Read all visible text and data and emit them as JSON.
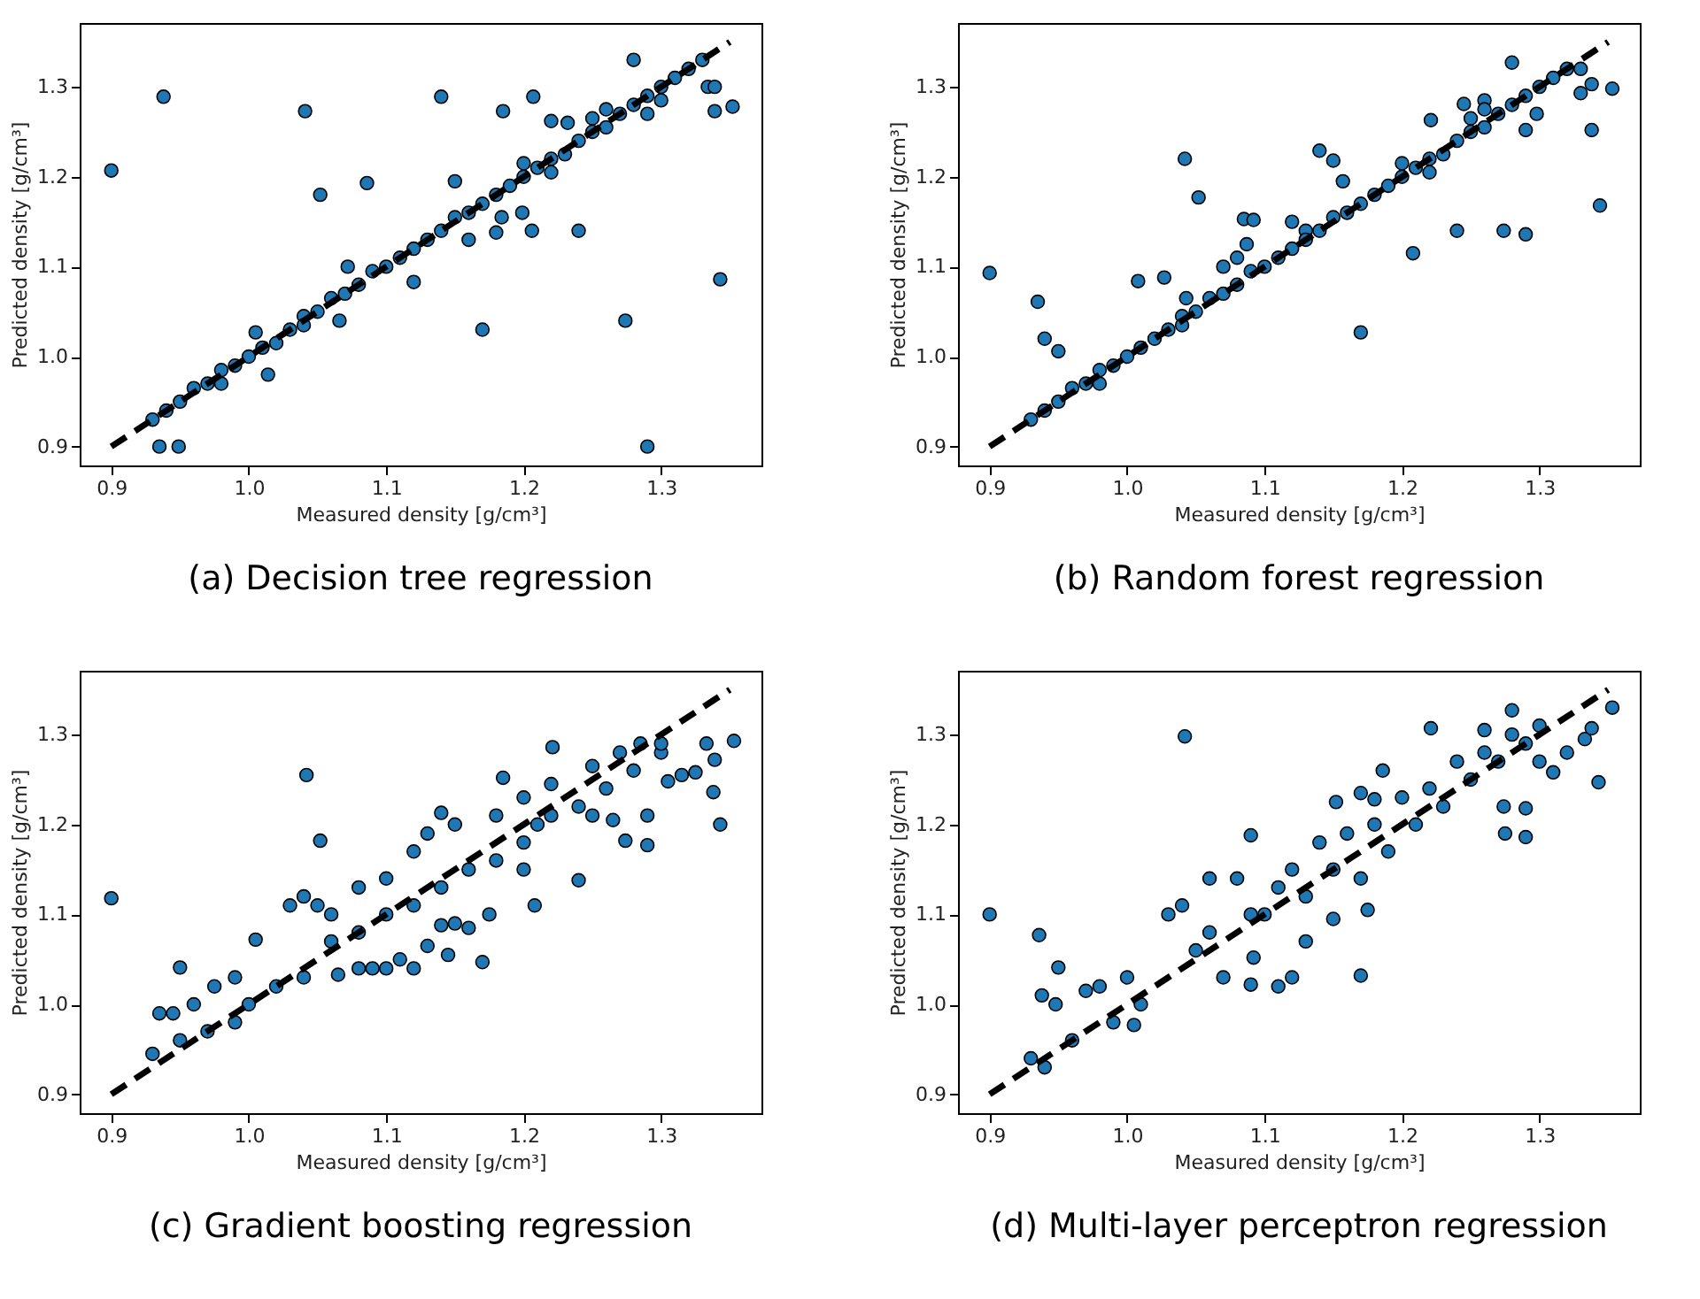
{
  "chart_data": [
    {
      "type": "scatter",
      "title": "(a) Decision tree regression",
      "xlabel": "Measured density [g/cm³]",
      "ylabel": "Predicted density [g/cm³]",
      "xlim": [
        0.877,
        1.373
      ],
      "ylim": [
        0.879,
        1.371
      ],
      "xticks": [
        {
          "value": 0.9,
          "label": "0.9"
        },
        {
          "value": 1.0,
          "label": "1.0"
        },
        {
          "value": 1.1,
          "label": "1.1"
        },
        {
          "value": 1.2,
          "label": "1.2"
        },
        {
          "value": 1.3,
          "label": "1.3"
        }
      ],
      "yticks": [
        {
          "value": 0.9,
          "label": "0.9"
        },
        {
          "value": 1.0,
          "label": "1.0"
        },
        {
          "value": 1.1,
          "label": "1.1"
        },
        {
          "value": 1.2,
          "label": "1.2"
        },
        {
          "value": 1.3,
          "label": "1.3"
        }
      ],
      "series": [
        {
          "type": "scatter",
          "color": "#1f77b4",
          "marker": "circle",
          "x": [
            0.9,
            0.938,
            0.935,
            0.949,
            1.041,
            1.052,
            1.086,
            1.14,
            1.185,
            1.207,
            1.15,
            1.16,
            1.17,
            1.18,
            1.184,
            1.199,
            1.206,
            1.24,
            1.274,
            1.29,
            1.343,
            1.352,
            1.339,
            1.334,
            1.339,
            1.28,
            1.22,
            1.232,
            1.014,
            1.066,
            1.072,
            1.12,
            1.005,
            0.93,
            0.94,
            0.95,
            0.96,
            0.97,
            0.98,
            0.99,
            1.0,
            1.01,
            1.02,
            1.03,
            1.04,
            1.05,
            1.06,
            1.07,
            1.08,
            1.09,
            1.1,
            1.11,
            1.12,
            1.13,
            1.14,
            1.15,
            1.16,
            1.17,
            1.18,
            1.19,
            1.2,
            1.21,
            1.22,
            1.23,
            1.24,
            1.25,
            1.26,
            1.27,
            1.28,
            1.29,
            1.3,
            1.31,
            1.32,
            1.33,
            1.22,
            1.25,
            1.29,
            1.3,
            1.26,
            1.2,
            0.98,
            1.04
          ],
          "values": [
            1.207,
            1.289,
            0.9,
            0.9,
            1.273,
            1.18,
            1.193,
            1.289,
            1.273,
            1.289,
            1.195,
            1.13,
            1.03,
            1.138,
            1.155,
            1.16,
            1.14,
            1.14,
            1.04,
            0.9,
            1.086,
            1.278,
            1.273,
            1.3,
            1.3,
            1.33,
            1.262,
            1.26,
            0.98,
            1.04,
            1.1,
            1.083,
            1.027,
            0.93,
            0.94,
            0.95,
            0.965,
            0.97,
            0.985,
            0.99,
            1.0,
            1.01,
            1.015,
            1.03,
            1.045,
            1.05,
            1.065,
            1.07,
            1.08,
            1.095,
            1.1,
            1.11,
            1.12,
            1.13,
            1.14,
            1.155,
            1.16,
            1.17,
            1.18,
            1.19,
            1.2,
            1.21,
            1.22,
            1.225,
            1.24,
            1.25,
            1.255,
            1.27,
            1.28,
            1.29,
            1.3,
            1.31,
            1.32,
            1.33,
            1.205,
            1.265,
            1.27,
            1.285,
            1.275,
            1.215,
            0.97,
            1.035
          ]
        },
        {
          "type": "line",
          "color": "#000000",
          "line_style": "dashed",
          "x": [
            0.9,
            1.35
          ],
          "values": [
            0.9,
            1.35
          ]
        }
      ]
    },
    {
      "type": "scatter",
      "title": "(b) Random forest regression",
      "xlabel": "Measured density [g/cm³]",
      "ylabel": "Predicted density [g/cm³]",
      "xlim": [
        0.877,
        1.373
      ],
      "ylim": [
        0.879,
        1.371
      ],
      "xticks": [
        {
          "value": 0.9,
          "label": "0.9"
        },
        {
          "value": 1.0,
          "label": "1.0"
        },
        {
          "value": 1.1,
          "label": "1.1"
        },
        {
          "value": 1.2,
          "label": "1.2"
        },
        {
          "value": 1.3,
          "label": "1.3"
        }
      ],
      "yticks": [
        {
          "value": 0.9,
          "label": "0.9"
        },
        {
          "value": 1.0,
          "label": "1.0"
        },
        {
          "value": 1.1,
          "label": "1.1"
        },
        {
          "value": 1.2,
          "label": "1.2"
        },
        {
          "value": 1.3,
          "label": "1.3"
        }
      ],
      "series": [
        {
          "type": "scatter",
          "color": "#1f77b4",
          "marker": "circle",
          "x": [
            0.9,
            0.935,
            0.94,
            0.95,
            1.008,
            1.027,
            1.042,
            1.052,
            1.07,
            1.08,
            1.085,
            1.092,
            1.087,
            1.043,
            1.14,
            1.15,
            1.157,
            1.17,
            1.208,
            1.24,
            1.274,
            1.29,
            1.29,
            1.298,
            1.28,
            1.245,
            1.26,
            1.221,
            1.33,
            1.338,
            1.338,
            1.344,
            1.353,
            1.12,
            1.13,
            0.93,
            0.94,
            0.95,
            0.96,
            0.97,
            0.98,
            0.99,
            1.0,
            1.01,
            1.02,
            1.03,
            1.04,
            1.05,
            1.06,
            1.07,
            1.08,
            1.09,
            1.1,
            1.11,
            1.12,
            1.13,
            1.14,
            1.15,
            1.16,
            1.17,
            1.18,
            1.19,
            1.2,
            1.21,
            1.22,
            1.23,
            1.24,
            1.25,
            1.26,
            1.27,
            1.28,
            1.29,
            1.3,
            1.31,
            1.32,
            1.33,
            1.22,
            1.25,
            1.26,
            1.2,
            0.98,
            1.04
          ],
          "values": [
            1.093,
            1.061,
            1.02,
            1.006,
            1.084,
            1.088,
            1.22,
            1.177,
            1.1,
            1.11,
            1.153,
            1.152,
            1.125,
            1.065,
            1.229,
            1.218,
            1.195,
            1.027,
            1.115,
            1.14,
            1.14,
            1.136,
            1.252,
            1.27,
            1.327,
            1.281,
            1.285,
            1.263,
            1.293,
            1.303,
            1.252,
            1.168,
            1.298,
            1.15,
            1.14,
            0.93,
            0.94,
            0.95,
            0.965,
            0.97,
            0.985,
            0.99,
            1.0,
            1.01,
            1.02,
            1.03,
            1.045,
            1.05,
            1.065,
            1.07,
            1.08,
            1.095,
            1.1,
            1.11,
            1.12,
            1.13,
            1.14,
            1.155,
            1.16,
            1.17,
            1.18,
            1.19,
            1.2,
            1.21,
            1.22,
            1.225,
            1.24,
            1.25,
            1.255,
            1.27,
            1.28,
            1.29,
            1.3,
            1.31,
            1.32,
            1.32,
            1.205,
            1.265,
            1.275,
            1.215,
            0.97,
            1.035
          ]
        },
        {
          "type": "line",
          "color": "#000000",
          "line_style": "dashed",
          "x": [
            0.9,
            1.35
          ],
          "values": [
            0.9,
            1.35
          ]
        }
      ]
    },
    {
      "type": "scatter",
      "title": "(c) Gradient boosting regression",
      "xlabel": "Measured density [g/cm³]",
      "ylabel": "Predicted density [g/cm³]",
      "xlim": [
        0.877,
        1.373
      ],
      "ylim": [
        0.879,
        1.371
      ],
      "xticks": [
        {
          "value": 0.9,
          "label": "0.9"
        },
        {
          "value": 1.0,
          "label": "1.0"
        },
        {
          "value": 1.1,
          "label": "1.1"
        },
        {
          "value": 1.2,
          "label": "1.2"
        },
        {
          "value": 1.3,
          "label": "1.3"
        }
      ],
      "yticks": [
        {
          "value": 0.9,
          "label": "0.9"
        },
        {
          "value": 1.0,
          "label": "1.0"
        },
        {
          "value": 1.1,
          "label": "1.1"
        },
        {
          "value": 1.2,
          "label": "1.2"
        },
        {
          "value": 1.3,
          "label": "1.3"
        }
      ],
      "series": [
        {
          "type": "scatter",
          "color": "#1f77b4",
          "marker": "circle",
          "x": [
            0.9,
            0.95,
            1.042,
            1.052,
            1.14,
            1.185,
            1.221,
            1.24,
            1.208,
            1.17,
            1.274,
            1.29,
            1.29,
            1.338,
            1.343,
            1.353,
            1.333,
            1.339,
            1.005,
            1.065,
            1.08,
            1.09,
            1.1,
            1.11,
            1.12,
            1.13,
            1.14,
            1.145,
            1.15,
            1.16,
            1.175,
            1.305,
            1.315,
            1.325,
            0.935,
            0.945,
            0.96,
            0.975,
            0.99,
            1.03,
            1.04,
            1.05,
            1.06,
            1.08,
            1.1,
            1.12,
            1.13,
            1.15,
            1.18,
            1.2,
            1.22,
            1.25,
            1.27,
            1.285,
            0.93,
            0.95,
            0.97,
            0.99,
            1.0,
            1.02,
            1.04,
            1.06,
            1.08,
            1.1,
            1.12,
            1.14,
            1.16,
            1.18,
            1.2,
            1.21,
            1.22,
            1.24,
            1.26,
            1.28,
            1.3,
            1.2,
            1.25,
            1.265,
            1.3
          ],
          "values": [
            1.118,
            1.041,
            1.255,
            1.182,
            1.213,
            1.252,
            1.286,
            1.138,
            1.11,
            1.047,
            1.182,
            1.177,
            1.21,
            1.236,
            1.2,
            1.293,
            1.29,
            1.272,
            1.072,
            1.033,
            1.04,
            1.04,
            1.04,
            1.05,
            1.04,
            1.065,
            1.088,
            1.055,
            1.09,
            1.085,
            1.1,
            1.248,
            1.255,
            1.258,
            0.99,
            0.99,
            1.0,
            1.02,
            1.03,
            1.11,
            1.12,
            1.11,
            1.1,
            1.13,
            1.14,
            1.17,
            1.19,
            1.2,
            1.21,
            1.23,
            1.245,
            1.265,
            1.28,
            1.29,
            0.945,
            0.96,
            0.97,
            0.98,
            1.0,
            1.02,
            1.03,
            1.07,
            1.08,
            1.1,
            1.11,
            1.13,
            1.15,
            1.16,
            1.18,
            1.2,
            1.21,
            1.22,
            1.24,
            1.26,
            1.28,
            1.15,
            1.21,
            1.205,
            1.29
          ]
        },
        {
          "type": "line",
          "color": "#000000",
          "line_style": "dashed",
          "x": [
            0.9,
            1.35
          ],
          "values": [
            0.9,
            1.35
          ]
        }
      ]
    },
    {
      "type": "scatter",
      "title": "(d) Multi-layer perceptron regression",
      "xlabel": "Measured density [g/cm³]",
      "ylabel": "Predicted density [g/cm³]",
      "xlim": [
        0.877,
        1.373
      ],
      "ylim": [
        0.879,
        1.371
      ],
      "xticks": [
        {
          "value": 0.9,
          "label": "0.9"
        },
        {
          "value": 1.0,
          "label": "1.0"
        },
        {
          "value": 1.1,
          "label": "1.1"
        },
        {
          "value": 1.2,
          "label": "1.2"
        },
        {
          "value": 1.3,
          "label": "1.3"
        }
      ],
      "yticks": [
        {
          "value": 0.9,
          "label": "0.9"
        },
        {
          "value": 1.0,
          "label": "1.0"
        },
        {
          "value": 1.1,
          "label": "1.1"
        },
        {
          "value": 1.2,
          "label": "1.2"
        },
        {
          "value": 1.3,
          "label": "1.3"
        }
      ],
      "series": [
        {
          "type": "scatter",
          "color": "#1f77b4",
          "marker": "circle",
          "x": [
            0.9,
            0.936,
            0.938,
            0.95,
            0.948,
            1.005,
            1.042,
            1.09,
            1.092,
            1.09,
            1.11,
            1.12,
            1.17,
            1.152,
            1.17,
            1.18,
            1.186,
            1.221,
            1.26,
            1.28,
            1.274,
            1.275,
            1.29,
            1.29,
            1.343,
            1.353,
            1.333,
            1.338,
            1.31,
            1.06,
            1.175,
            1.15,
            1.13,
            0.93,
            0.94,
            0.96,
            0.97,
            0.98,
            0.99,
            1.0,
            1.01,
            1.03,
            1.04,
            1.05,
            1.06,
            1.07,
            1.08,
            1.09,
            1.1,
            1.11,
            1.12,
            1.13,
            1.14,
            1.15,
            1.16,
            1.17,
            1.18,
            1.19,
            1.2,
            1.21,
            1.22,
            1.23,
            1.24,
            1.25,
            1.26,
            1.27,
            1.28,
            1.29,
            1.3,
            1.3,
            1.32
          ],
          "values": [
            1.1,
            1.077,
            1.01,
            1.041,
            1.0,
            0.977,
            1.298,
            1.188,
            1.052,
            1.022,
            1.02,
            1.03,
            1.032,
            1.225,
            1.235,
            1.228,
            1.26,
            1.307,
            1.305,
            1.327,
            1.22,
            1.19,
            1.186,
            1.218,
            1.247,
            1.33,
            1.295,
            1.307,
            1.258,
            1.14,
            1.105,
            1.095,
            1.07,
            0.94,
            0.93,
            0.96,
            1.015,
            1.02,
            0.98,
            1.03,
            1.0,
            1.1,
            1.11,
            1.06,
            1.08,
            1.03,
            1.14,
            1.1,
            1.1,
            1.13,
            1.15,
            1.12,
            1.18,
            1.15,
            1.19,
            1.14,
            1.2,
            1.17,
            1.23,
            1.2,
            1.24,
            1.22,
            1.27,
            1.25,
            1.28,
            1.27,
            1.3,
            1.29,
            1.31,
            1.27,
            1.28
          ]
        },
        {
          "type": "line",
          "color": "#000000",
          "line_style": "dashed",
          "x": [
            0.9,
            1.35
          ],
          "values": [
            0.9,
            1.35
          ]
        }
      ]
    }
  ]
}
